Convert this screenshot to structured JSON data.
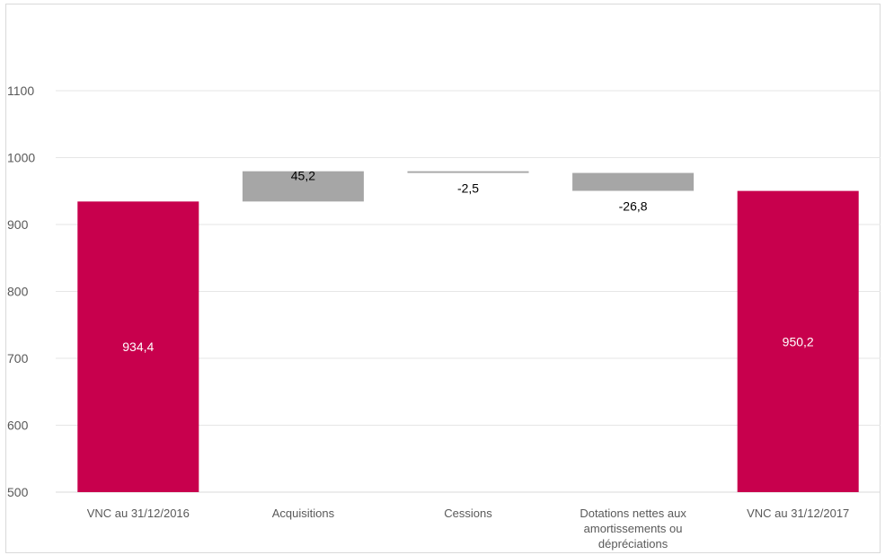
{
  "colors": {
    "total_bar": "#C8004D",
    "delta_bar": "#A6A6A6",
    "gridline": "#E6E6E6",
    "axis_text": "#595959",
    "label_text": "#000000",
    "label_text_inside": "#FFFFFF"
  },
  "chart_data": {
    "type": "bar",
    "subtype": "waterfall",
    "title": "",
    "xlabel": "",
    "ylabel": "",
    "ylim": [
      500,
      1100
    ],
    "yticks": [
      500,
      600,
      700,
      800,
      900,
      1000,
      1100
    ],
    "grid": true,
    "legend": "none",
    "categories": [
      [
        "VNC au 31/12/2016"
      ],
      [
        "Acquisitions"
      ],
      [
        "Cessions"
      ],
      [
        "Dotations nettes aux",
        "amortissements ou",
        "dépréciations"
      ],
      [
        "VNC au 31/12/2017"
      ]
    ],
    "bars": [
      {
        "kind": "total",
        "start": 500,
        "end": 934.4,
        "label": "934,4"
      },
      {
        "kind": "delta",
        "start": 934.4,
        "end": 979.6,
        "label": "45,2"
      },
      {
        "kind": "delta",
        "start": 979.6,
        "end": 977.1,
        "label": "-2,5"
      },
      {
        "kind": "delta",
        "start": 977.1,
        "end": 950.3,
        "label": "-26,8"
      },
      {
        "kind": "total",
        "start": 500,
        "end": 950.2,
        "label": "950,2"
      }
    ]
  }
}
